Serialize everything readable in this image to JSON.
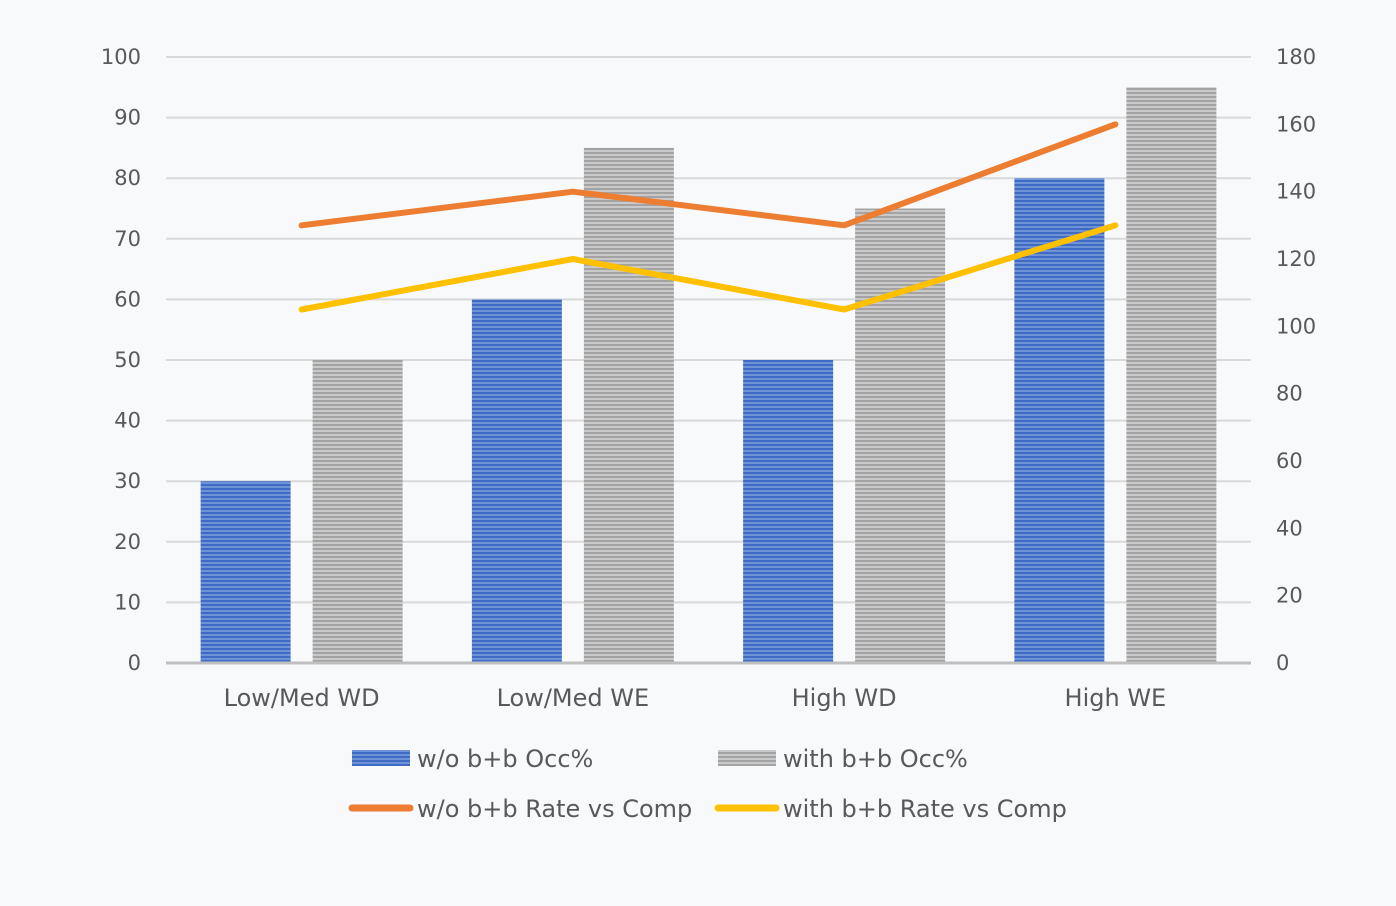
{
  "chart_data": {
    "type": "bar",
    "title": "",
    "xlabel": "",
    "ylabel": "",
    "categories": [
      "Low/Med WD",
      "Low/Med WE",
      "High WD",
      "High WE"
    ],
    "y_left": {
      "lim": [
        0,
        100
      ],
      "ticks": [
        "0",
        "10",
        "20",
        "30",
        "40",
        "50",
        "60",
        "70",
        "80",
        "90",
        "100"
      ]
    },
    "y_right": {
      "lim": [
        0,
        180
      ],
      "ticks": [
        "0",
        "20",
        "40",
        "60",
        "80",
        "100",
        "120",
        "140",
        "160",
        "180"
      ]
    },
    "grid": true,
    "legend_position": "bottom",
    "series": [
      {
        "name": "w/o b+b Occ%",
        "kind": "bar",
        "axis": "left",
        "color": "#4472c4",
        "values": [
          30,
          60,
          50,
          80
        ]
      },
      {
        "name": "with b+b Occ%",
        "kind": "bar",
        "axis": "left",
        "color": "#a5a5a5",
        "values": [
          50,
          85,
          75,
          95
        ]
      },
      {
        "name": "w/o b+b Rate vs Comp",
        "kind": "line",
        "axis": "right",
        "color": "#ed7d31",
        "values": [
          130,
          140,
          130,
          160
        ]
      },
      {
        "name": "with b+b Rate vs Comp",
        "kind": "line",
        "axis": "right",
        "color": "#ffc000",
        "values": [
          105,
          120,
          105,
          130
        ]
      }
    ]
  }
}
